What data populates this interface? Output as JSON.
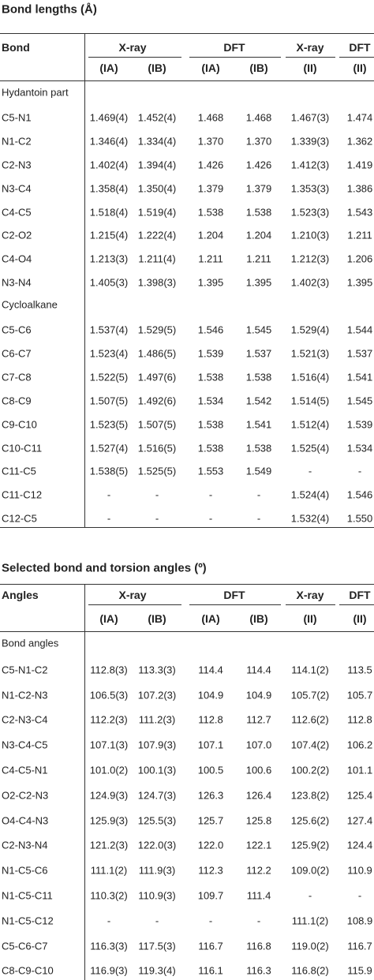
{
  "sections": [
    {
      "title": "Bond lengths (Å)",
      "header": {
        "first": "Bond",
        "groups": [
          "X-ray",
          "DFT",
          "X-ray",
          "DFT"
        ],
        "sub": [
          "(IA)",
          "(IB)",
          "(IA)",
          "(IB)",
          "(II)",
          "(II)"
        ]
      },
      "rows": [
        {
          "label": "Hydantoin part"
        },
        {
          "label": "C5-N1",
          "cells": [
            "1.469(4)",
            "1.452(4)",
            "1.468",
            "1.468",
            "1.467(3)",
            "1.474"
          ]
        },
        {
          "label": "N1-C2",
          "cells": [
            "1.346(4)",
            "1.334(4)",
            "1.370",
            "1.370",
            "1.339(3)",
            "1.362"
          ]
        },
        {
          "label": "C2-N3",
          "cells": [
            "1.402(4)",
            "1.394(4)",
            "1.426",
            "1.426",
            "1.412(3)",
            "1.419"
          ]
        },
        {
          "label": "N3-C4",
          "cells": [
            "1.358(4)",
            "1.350(4)",
            "1.379",
            "1.379",
            "1.353(3)",
            "1.386"
          ]
        },
        {
          "label": "C4-C5",
          "cells": [
            "1.518(4)",
            "1.519(4)",
            "1.538",
            "1.538",
            "1.523(3)",
            "1.543"
          ]
        },
        {
          "label": "C2-O2",
          "cells": [
            "1.215(4)",
            "1.222(4)",
            "1.204",
            "1.204",
            "1.210(3)",
            "1.211"
          ]
        },
        {
          "label": "C4-O4",
          "cells": [
            "1.213(3)",
            "1.211(4)",
            "1.211",
            "1.211",
            "1.212(3)",
            "1.206"
          ]
        },
        {
          "label": "N3-N4",
          "cells": [
            "1.405(3)",
            "1.398(3)",
            "1.395",
            "1.395",
            "1.402(3)",
            "1.395"
          ]
        },
        {
          "label": "Cycloalkane"
        },
        {
          "label": "C5-C6",
          "cells": [
            "1.537(4)",
            "1.529(5)",
            "1.546",
            "1.545",
            "1.529(4)",
            "1.544"
          ]
        },
        {
          "label": "C6-C7",
          "cells": [
            "1.523(4)",
            "1.486(5)",
            "1.539",
            "1.537",
            "1.521(3)",
            "1.537"
          ]
        },
        {
          "label": "C7-C8",
          "cells": [
            "1.522(5)",
            "1.497(6)",
            "1.538",
            "1.538",
            "1.516(4)",
            "1.541"
          ]
        },
        {
          "label": "C8-C9",
          "cells": [
            "1.507(5)",
            "1.492(6)",
            "1.534",
            "1.542",
            "1.514(5)",
            "1.545"
          ]
        },
        {
          "label": "C9-C10",
          "cells": [
            "1.523(5)",
            "1.507(5)",
            "1.538",
            "1.541",
            "1.512(4)",
            "1.539"
          ]
        },
        {
          "label": "C10-C11",
          "cells": [
            "1.527(4)",
            "1.516(5)",
            "1.538",
            "1.538",
            "1.525(4)",
            "1.534"
          ]
        },
        {
          "label": "C11-C5",
          "cells": [
            "1.538(5)",
            "1.525(5)",
            "1.553",
            "1.549",
            "-",
            "-"
          ]
        },
        {
          "label": "C11-C12",
          "cells": [
            "-",
            "-",
            "-",
            "-",
            "1.524(4)",
            "1.546"
          ]
        },
        {
          "label": "C12-C5",
          "cells": [
            "-",
            "-",
            "-",
            "-",
            "1.532(4)",
            "1.550"
          ]
        }
      ]
    },
    {
      "title": "Selected bond and torsion angles (º)",
      "header": {
        "first": "Angles",
        "groups": [
          "X-ray",
          "DFT",
          "X-ray",
          "DFT"
        ],
        "sub": [
          "(IA)",
          "(IB)",
          "(IA)",
          "(IB)",
          "(II)",
          "(II)"
        ]
      },
      "rows": [
        {
          "label": "Bond angles"
        },
        {
          "label": "C5-N1-C2",
          "cells": [
            "112.8(3)",
            "113.3(3)",
            "114.4",
            "114.4",
            "114.1(2)",
            "113.5"
          ]
        },
        {
          "label": "N1-C2-N3",
          "cells": [
            "106.5(3)",
            "107.2(3)",
            "104.9",
            "104.9",
            "105.7(2)",
            "105.7"
          ]
        },
        {
          "label": "C2-N3-C4",
          "cells": [
            "112.2(3)",
            "111.2(3)",
            "112.8",
            "112.7",
            "112.6(2)",
            "112.8"
          ]
        },
        {
          "label": "N3-C4-C5",
          "cells": [
            "107.1(3)",
            "107.9(3)",
            "107.1",
            "107.0",
            "107.4(2)",
            "106.2"
          ]
        },
        {
          "label": "C4-C5-N1",
          "cells": [
            "101.0(2)",
            "100.1(3)",
            "100.5",
            "100.6",
            "100.2(2)",
            "101.1"
          ]
        },
        {
          "label": "O2-C2-N3",
          "cells": [
            "124.9(3)",
            "124.7(3)",
            "126.3",
            "126.4",
            "123.8(2)",
            "125.4"
          ]
        },
        {
          "label": "O4-C4-N3",
          "cells": [
            "125.9(3)",
            "125.5(3)",
            "125.7",
            "125.8",
            "125.6(2)",
            "127.4"
          ]
        },
        {
          "label": "C2-N3-N4",
          "cells": [
            "121.2(3)",
            "122.0(3)",
            "122.0",
            "122.1",
            "125.9(2)",
            "124.4"
          ]
        },
        {
          "label": "N1-C5-C6",
          "cells": [
            "111.1(2)",
            "111.9(3)",
            "112.3",
            "112.2",
            "109.0(2)",
            "110.9"
          ]
        },
        {
          "label": "N1-C5-C11",
          "cells": [
            "110.3(2)",
            "110.9(3)",
            "109.7",
            "111.4",
            "-",
            "-"
          ]
        },
        {
          "label": "N1-C5-C12",
          "cells": [
            "-",
            "-",
            "-",
            "-",
            "111.1(2)",
            "108.9"
          ]
        },
        {
          "label": "C5-C6-C7",
          "cells": [
            "116.3(3)",
            "117.5(3)",
            "116.7",
            "116.8",
            "119.0(2)",
            "116.7"
          ]
        },
        {
          "label": "C8-C9-C10",
          "cells": [
            "116.9(3)",
            "119.3(4)",
            "116.1",
            "116.3",
            "116.8(2)",
            "115.9"
          ]
        }
      ]
    }
  ]
}
